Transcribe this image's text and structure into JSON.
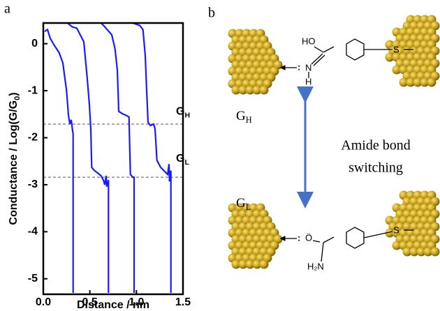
{
  "chart_data": {
    "type": "line",
    "panel_label": "a",
    "x_label": "Distance / nm",
    "y_label": [
      "Conductance / Log(G/G",
      "0",
      ")"
    ],
    "xlim": [
      0,
      1.5
    ],
    "ylim": [
      -5.33,
      0.44
    ],
    "xticks": [
      {
        "value": 0,
        "label": "0.0"
      },
      0.5,
      {
        "value": 1,
        "label": "1.0"
      },
      1.5
    ],
    "yticks": [
      0,
      -1,
      -2,
      -3,
      -4,
      -5
    ],
    "reference_lines": [
      -1.71,
      -2.84
    ],
    "annotations": [
      {
        "text": "G",
        "sub": "H",
        "x": 1.14,
        "y": -1.45
      },
      {
        "text": "G",
        "sub": "L",
        "x": 1.14,
        "y": -2.45
      }
    ],
    "series": [
      {
        "color": "#1a1aff",
        "x": [
          0.015,
          0.045,
          0.075,
          0.12,
          0.17,
          0.21,
          0.25,
          0.27,
          0.285,
          0.3,
          0.315,
          0.32,
          0.32
        ],
        "values": [
          0.26,
          0.3,
          0.11,
          -0.04,
          -0.19,
          -0.41,
          -1.0,
          -1.52,
          -1.71,
          -1.62,
          -1.86,
          -1.92,
          -5.3
        ]
      },
      {
        "color": "#1a1aff",
        "x": [
          0.26,
          0.31,
          0.36,
          0.435,
          0.47,
          0.495,
          0.51,
          0.52,
          0.55,
          0.585,
          0.62,
          0.645,
          0.66,
          0.675,
          0.68,
          0.7,
          0.7
        ],
        "values": [
          0.44,
          0.36,
          0.33,
          0.04,
          -0.7,
          -1.3,
          -1.82,
          -2.63,
          -2.7,
          -2.75,
          -2.81,
          -2.9,
          -3.0,
          -2.81,
          -3.04,
          -2.9,
          -5.3
        ]
      },
      {
        "color": "#1a1aff",
        "x": [
          0.62,
          0.66,
          0.735,
          0.77,
          0.795,
          0.81,
          0.85,
          0.885,
          0.92,
          0.935,
          0.96,
          0.975,
          0.975
        ],
        "values": [
          0.44,
          0.36,
          0.19,
          -0.11,
          -0.56,
          -1.44,
          -1.49,
          -1.52,
          -1.56,
          -2.78,
          -2.84,
          -2.84,
          -5.3
        ]
      },
      {
        "color": "#1a1aff",
        "x": [
          0.96,
          1.035,
          1.07,
          1.095,
          1.11,
          1.125,
          1.15,
          1.185,
          1.2,
          1.22,
          1.26,
          1.295,
          1.335,
          1.35,
          1.355,
          1.37,
          1.37
        ],
        "values": [
          0.44,
          0.39,
          0.3,
          -0.26,
          -1.0,
          -1.67,
          -1.74,
          -1.71,
          -1.81,
          -2.48,
          -2.63,
          -2.7,
          -2.78,
          -2.56,
          -2.93,
          -2.7,
          -5.3
        ]
      }
    ]
  },
  "diagram": {
    "panel_label": "b",
    "top": {
      "state": {
        "text": "G",
        "sub": "H"
      },
      "ho": "HO",
      "n": "N",
      "h": "H",
      "lone_pair": ":",
      "s": "S"
    },
    "bottom": {
      "state": {
        "text": "G",
        "sub": "L"
      },
      "o": "Ö",
      "lone_pair": ":",
      "h2n": "H₂N",
      "s": "S"
    },
    "switch_label": [
      "Amide bond",
      "switching"
    ]
  }
}
